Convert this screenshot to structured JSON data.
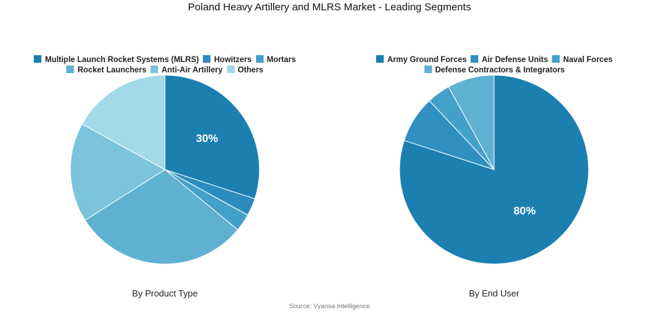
{
  "title": "Poland Heavy Artillery and MLRS Market - Leading Segments",
  "source": "Source: Vyansa Intelligence",
  "chart_data": [
    {
      "type": "pie",
      "subtitle": "By Product Type",
      "categories": [
        "Multiple Launch Rocket Systems (MLRS)",
        "Howitzers",
        "Mortars",
        "Rocket Launchers",
        "Anti-Air Artillery",
        "Others"
      ],
      "values": [
        30,
        3,
        3,
        30,
        17,
        17
      ],
      "colors": [
        "#1b7fb0",
        "#2c8cbd",
        "#43a0c9",
        "#5fb1d2",
        "#7cc3dc",
        "#a3d9e8"
      ],
      "data_labels": [
        "30%",
        "",
        "",
        "",
        "",
        ""
      ],
      "legend_rows": [
        [
          0,
          1,
          2
        ],
        [
          3,
          4,
          5
        ]
      ],
      "start_angle": 0,
      "legend": "top"
    },
    {
      "type": "pie",
      "subtitle": "By End User",
      "categories": [
        "Army Ground Forces",
        "Air Defense Units",
        "Naval Forces",
        "Defense Contractors & Integrators"
      ],
      "values": [
        80,
        8,
        4,
        8
      ],
      "colors": [
        "#1b7fb0",
        "#2e8fc0",
        "#43a0c9",
        "#5fb1d2"
      ],
      "data_labels": [
        "80%",
        "",
        "",
        ""
      ],
      "legend_rows": [
        [
          0,
          1,
          2
        ],
        [
          3
        ]
      ],
      "start_angle": 0,
      "legend": "top"
    }
  ]
}
